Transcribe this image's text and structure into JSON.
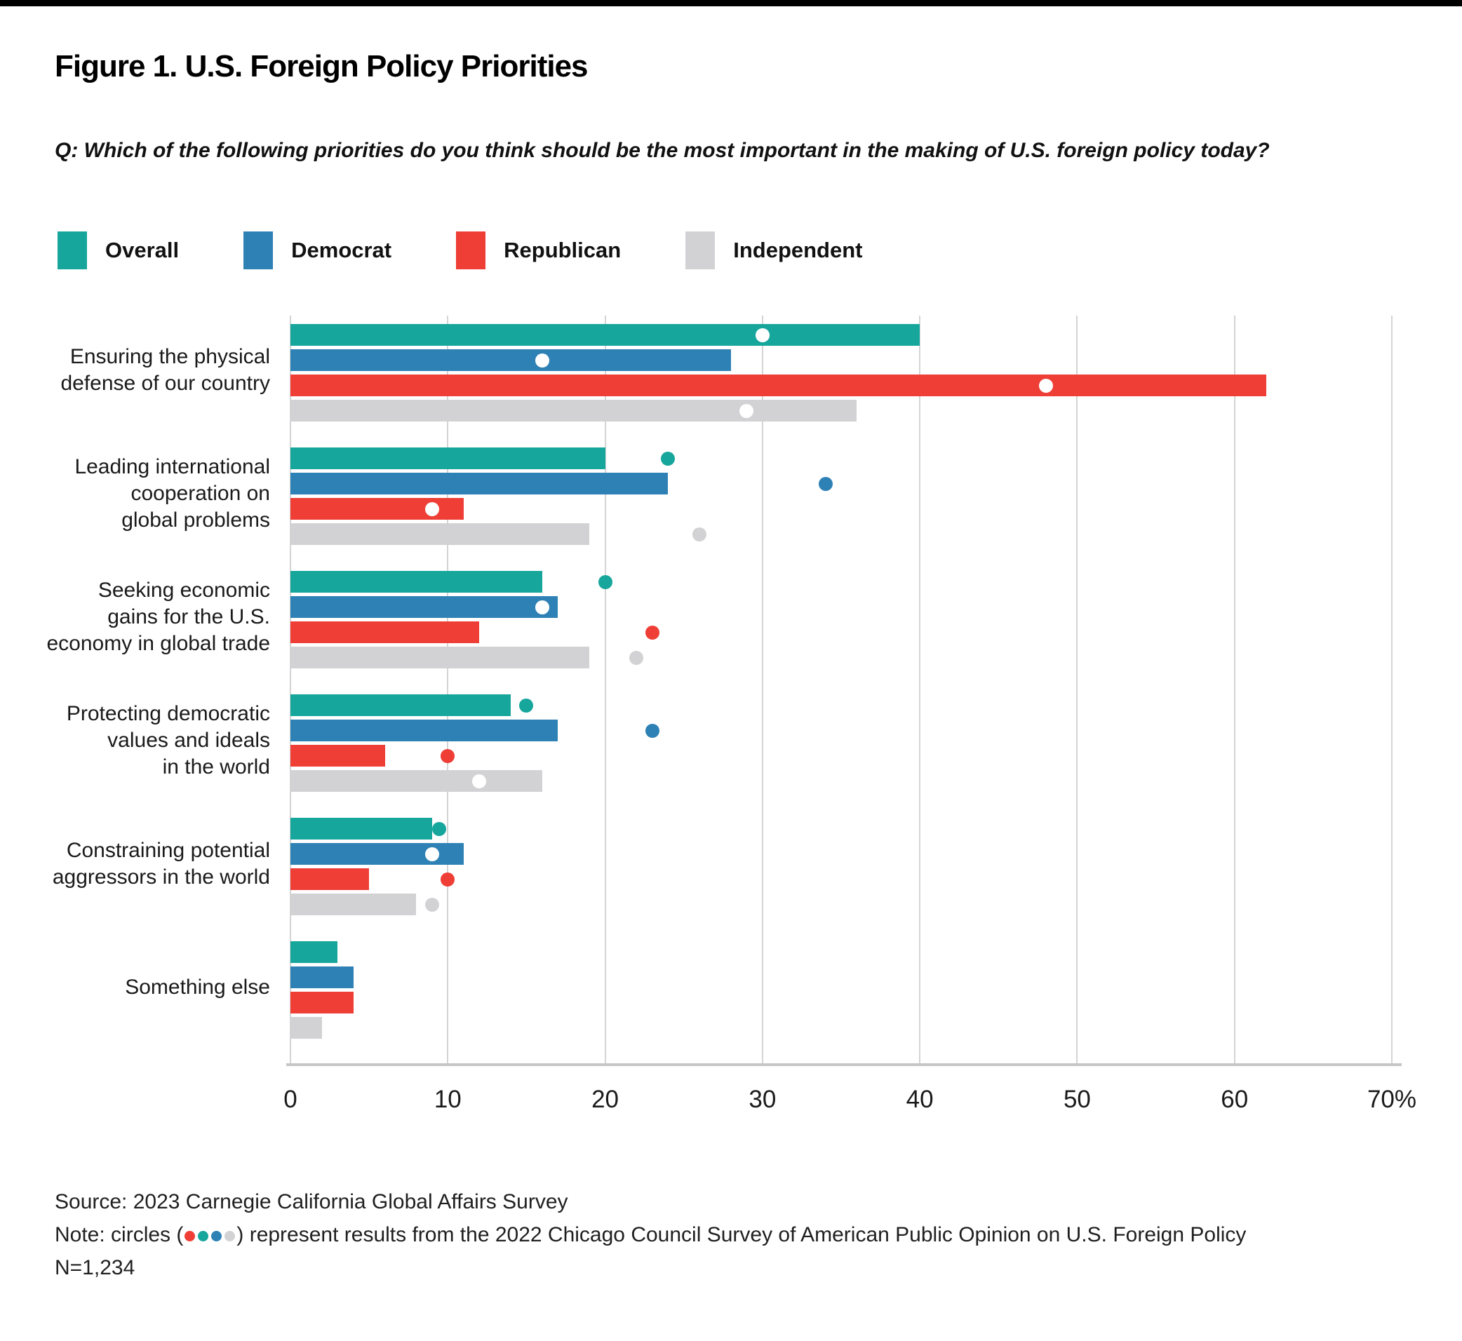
{
  "figure": {
    "title": "Figure 1. U.S. Foreign Policy Priorities",
    "question": "Q: Which of the following priorities do you think should be the most important in the making of U.S. foreign policy today?"
  },
  "legend": {
    "items": [
      {
        "label": "Overall",
        "color": "#17a69c"
      },
      {
        "label": "Democrat",
        "color": "#2e81b5"
      },
      {
        "label": "Republican",
        "color": "#ee3e36"
      },
      {
        "label": "Independent",
        "color": "#d2d2d4"
      }
    ]
  },
  "colors": {
    "gridline": "#d4d4d4",
    "axis_line": "#c6c6c6",
    "circle_inside_bar": "#ffffff"
  },
  "chart_data": {
    "type": "bar",
    "orientation": "horizontal",
    "title": "Figure 1. U.S. Foreign Policy Priorities",
    "xlabel": "",
    "ylabel": "",
    "xlim": [
      0,
      70
    ],
    "x_ticks": [
      0,
      10,
      20,
      30,
      40,
      50,
      60,
      70
    ],
    "x_tick_labels": [
      "0",
      "10",
      "20",
      "30",
      "40",
      "50",
      "60",
      "70%"
    ],
    "grid": "vertical",
    "legend_position": "top",
    "categories": [
      "Ensuring the physical defense of our country",
      "Leading international cooperation on global problems",
      "Seeking economic gains for the U.S. economy in global trade",
      "Protecting democratic values and ideals in the world",
      "Constraining potential aggressors in the world",
      "Something else"
    ],
    "category_label_lines": [
      [
        "Ensuring the physical",
        "defense of our country"
      ],
      [
        "Leading international",
        "cooperation on",
        "global problems"
      ],
      [
        "Seeking economic",
        "gains for the U.S.",
        "economy in global trade"
      ],
      [
        "Protecting democratic",
        "values and ideals",
        "in the world"
      ],
      [
        "Constraining potential",
        "aggressors in the world"
      ],
      [
        "Something else"
      ]
    ],
    "series": [
      {
        "name": "Overall",
        "color": "#17a69c",
        "values": [
          40,
          20,
          16,
          14,
          9,
          3
        ],
        "circles_2022": [
          30,
          24,
          20,
          15,
          9,
          null
        ]
      },
      {
        "name": "Democrat",
        "color": "#2e81b5",
        "values": [
          28,
          24,
          17,
          17,
          11,
          4
        ],
        "circles_2022": [
          16,
          34,
          16,
          23,
          9,
          null
        ]
      },
      {
        "name": "Republican",
        "color": "#ee3e36",
        "values": [
          62,
          11,
          12,
          6,
          5,
          4
        ],
        "circles_2022": [
          48,
          9,
          23,
          10,
          10,
          null
        ]
      },
      {
        "name": "Independent",
        "color": "#d2d2d4",
        "values": [
          36,
          19,
          19,
          16,
          8,
          2
        ],
        "circles_2022": [
          29,
          26,
          22,
          12,
          9,
          null
        ]
      }
    ],
    "circle_note": "circles represent results from the 2022 Chicago Council Survey"
  },
  "footer": {
    "source": "Source: 2023 Carnegie California Global Affairs Survey",
    "note_prefix": "Note: circles (",
    "note_dot_colors": [
      "#ee3e36",
      "#17a69c",
      "#2e81b5",
      "#d2d2d4"
    ],
    "note_suffix": ") represent results from the 2022 Chicago Council Survey of American Public Opinion on U.S. Foreign Policy",
    "sample_size": "N=1,234"
  }
}
